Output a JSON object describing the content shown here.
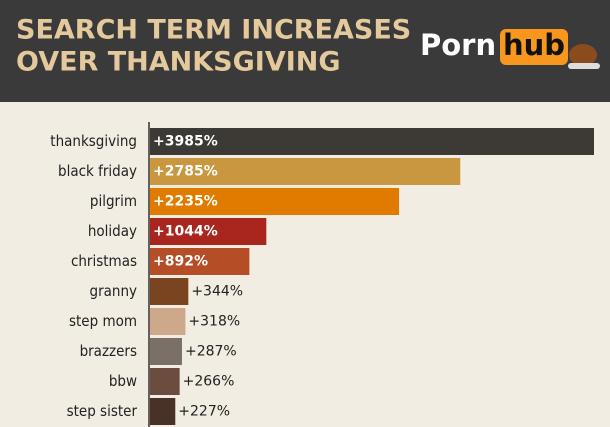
{
  "logo": {
    "left": "Porn",
    "right": "hub"
  },
  "chart_data": {
    "type": "bar",
    "orientation": "horizontal",
    "title": [
      "SEARCH TERM INCREASES",
      "OVER THANKSGIVING"
    ],
    "categories": [
      "thanksgiving",
      "black friday",
      "pilgrim",
      "holiday",
      "christmas",
      "granny",
      "step mom",
      "brazzers",
      "bbw",
      "step sister"
    ],
    "values": [
      3985,
      2785,
      2235,
      1044,
      892,
      344,
      318,
      287,
      266,
      227
    ],
    "value_labels": [
      "+3985%",
      "+2785%",
      "+2235%",
      "+1044%",
      "+892%",
      "+344%",
      "+318%",
      "+287%",
      "+266%",
      "+227%"
    ],
    "colors": [
      "#3d3a35",
      "#c9973f",
      "#e07b00",
      "#a8261e",
      "#b54e26",
      "#7a4421",
      "#cda88a",
      "#7b7067",
      "#6b4c3e",
      "#4a3128"
    ]
  }
}
